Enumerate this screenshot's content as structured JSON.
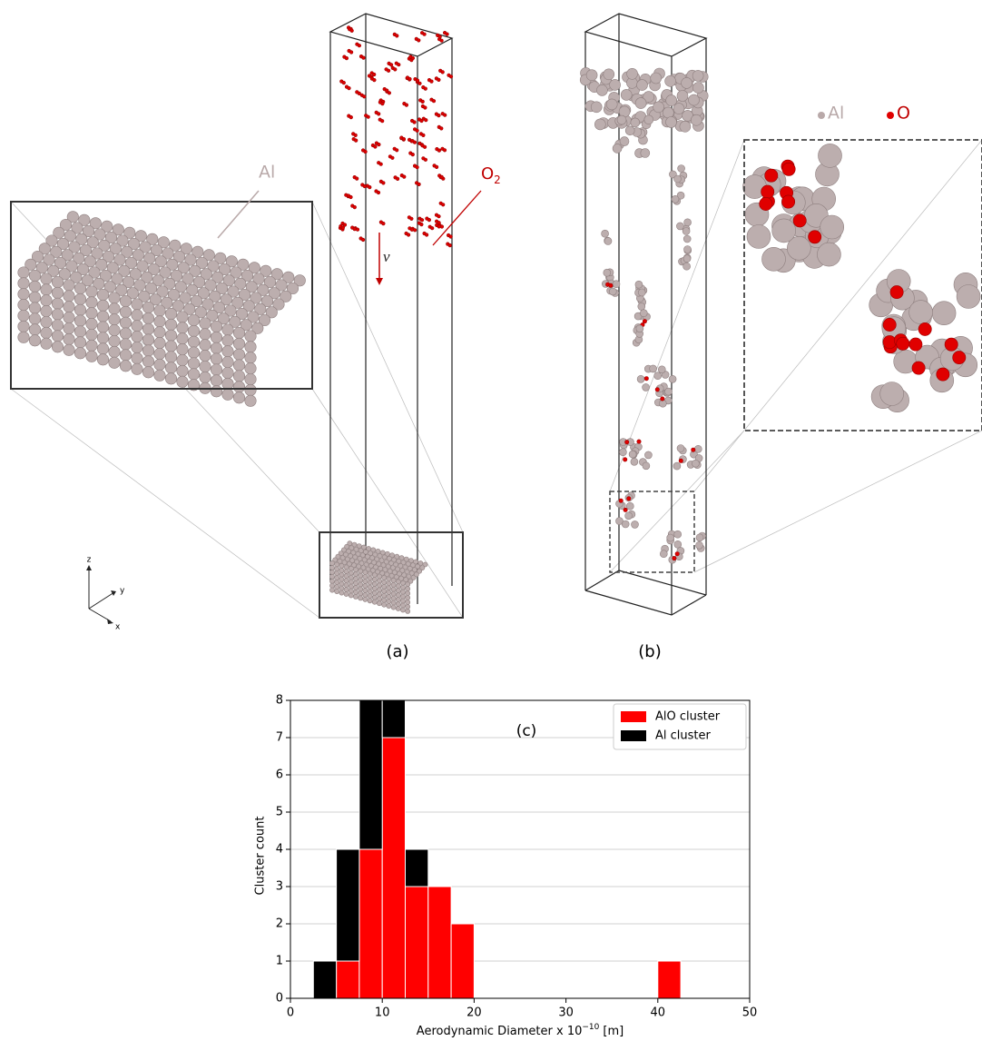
{
  "panels": {
    "a_label": "(a)",
    "b_label": "(b)",
    "al_label": "Al",
    "o2_label": "O",
    "o2_sub": "2",
    "velocity": "v",
    "legend_al": "Al",
    "legend_o": "O",
    "axis_z": "z",
    "axis_y": "y",
    "axis_x": "x"
  },
  "chart_data": {
    "type": "histogram",
    "annotation": "(c)",
    "xlabel": "Aerodynamic Diameter x 10",
    "xlabel_exp": "−10",
    "xlabel_unit": "[m]",
    "ylabel": "Cluster count",
    "bins": [
      2.5,
      5,
      7.5,
      10,
      12.5,
      15,
      17.5,
      20,
      22.5,
      25,
      27.5,
      30,
      32.5,
      35,
      37.5,
      40,
      42.5
    ],
    "series": [
      {
        "name": "AlO cluster",
        "color": "#ff0000",
        "values": [
          0,
          1,
          4,
          7,
          3,
          3,
          2,
          0,
          0,
          0,
          0,
          0,
          0,
          0,
          0,
          1
        ]
      },
      {
        "name": "Al cluster",
        "color": "#000000",
        "values": [
          1,
          3,
          4,
          1,
          1,
          0,
          0,
          0,
          0,
          0,
          0,
          0,
          0,
          0,
          0,
          0
        ]
      }
    ],
    "stacked": true,
    "xlim": [
      0,
      50
    ],
    "ylim": [
      0,
      8
    ],
    "xticks": [
      0,
      10,
      20,
      30,
      40,
      50
    ],
    "yticks": [
      0,
      1,
      2,
      3,
      4,
      5,
      6,
      7,
      8
    ],
    "grid": "y",
    "legend": "upper right"
  }
}
